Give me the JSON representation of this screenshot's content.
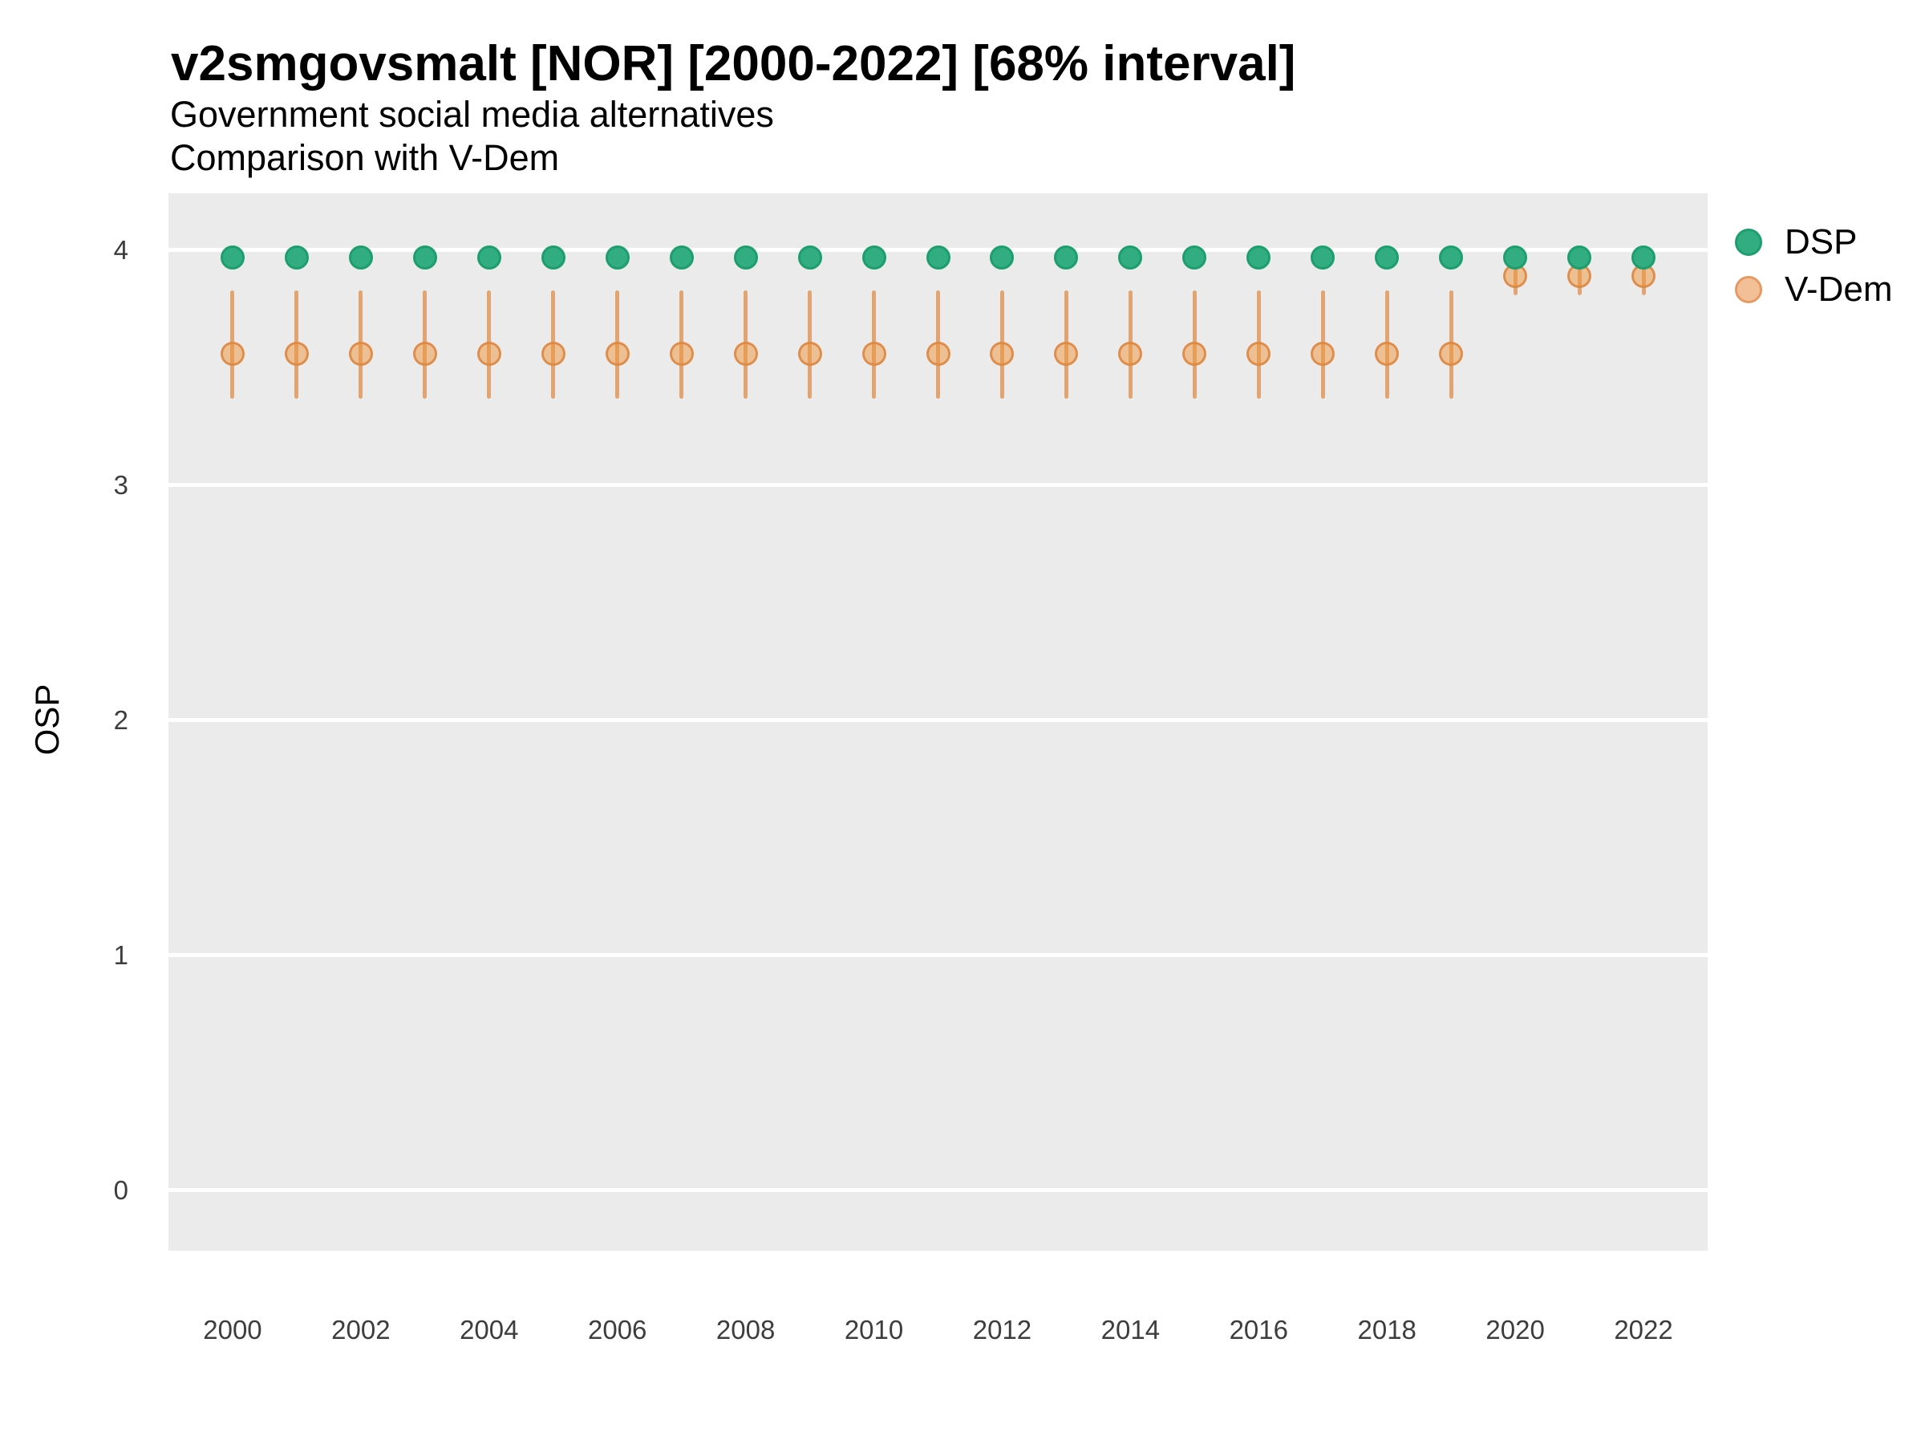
{
  "header": {
    "title": "v2smgovsmalt [NOR] [2000-2022] [68% interval]",
    "subtitle_line1": "Government social media alternatives",
    "subtitle_line2": "Comparison with V-Dem"
  },
  "chart_data": {
    "type": "scatter",
    "title": "v2smgovsmalt [NOR] [2000-2022] [68% interval]",
    "subtitle": [
      "Government social media alternatives",
      "Comparison with V-Dem"
    ],
    "interval_label": "68% interval",
    "country": "NOR",
    "xlabel": "",
    "ylabel": "OSP",
    "x": [
      2000,
      2001,
      2002,
      2003,
      2004,
      2005,
      2006,
      2007,
      2008,
      2009,
      2010,
      2011,
      2012,
      2013,
      2014,
      2015,
      2016,
      2017,
      2018,
      2019,
      2020,
      2021,
      2022
    ],
    "xticks": [
      2000,
      2002,
      2004,
      2006,
      2008,
      2010,
      2012,
      2014,
      2016,
      2018,
      2020,
      2022
    ],
    "yticks": [
      0,
      1,
      2,
      3,
      4
    ],
    "xlim": [
      1999.0,
      2023.0
    ],
    "ylim": [
      -0.256,
      4.242
    ],
    "grid": "horizontal-major-only",
    "panel_bg": "#EBEBEB",
    "gridline_color": "#FFFFFF",
    "legend_position": "right",
    "series": [
      {
        "name": "V-Dem",
        "mark": "pointrange",
        "fill": "rgba(238,150,60,0.5)",
        "stroke": "rgba(222,136,66,0.9)",
        "bar_color": "#E2A470",
        "values": [
          3.56,
          3.56,
          3.56,
          3.56,
          3.56,
          3.56,
          3.56,
          3.56,
          3.56,
          3.56,
          3.56,
          3.56,
          3.56,
          3.56,
          3.56,
          3.56,
          3.56,
          3.56,
          3.56,
          3.56,
          3.89,
          3.89,
          3.89
        ],
        "low": [
          3.37,
          3.37,
          3.37,
          3.37,
          3.37,
          3.37,
          3.37,
          3.37,
          3.37,
          3.37,
          3.37,
          3.37,
          3.37,
          3.37,
          3.37,
          3.37,
          3.37,
          3.37,
          3.37,
          3.37,
          3.81,
          3.81,
          3.81
        ],
        "high": [
          3.83,
          3.83,
          3.83,
          3.83,
          3.83,
          3.83,
          3.83,
          3.83,
          3.83,
          3.83,
          3.83,
          3.83,
          3.83,
          3.83,
          3.83,
          3.83,
          3.83,
          3.83,
          3.83,
          3.83,
          3.96,
          3.96,
          3.96
        ]
      },
      {
        "name": "DSP",
        "mark": "point",
        "fill": "#32AD81",
        "stroke": "#1D9E6F",
        "values": [
          3.97,
          3.97,
          3.97,
          3.97,
          3.97,
          3.97,
          3.97,
          3.97,
          3.97,
          3.97,
          3.97,
          3.97,
          3.97,
          3.97,
          3.97,
          3.97,
          3.97,
          3.97,
          3.97,
          3.97,
          3.97,
          3.97,
          3.97
        ]
      }
    ],
    "legend": [
      {
        "label": "DSP",
        "fill": "#32AD81",
        "stroke": "#1D9E6F"
      },
      {
        "label": "V-Dem",
        "fill": "#F3BF97",
        "stroke": "#E69A61"
      }
    ]
  }
}
